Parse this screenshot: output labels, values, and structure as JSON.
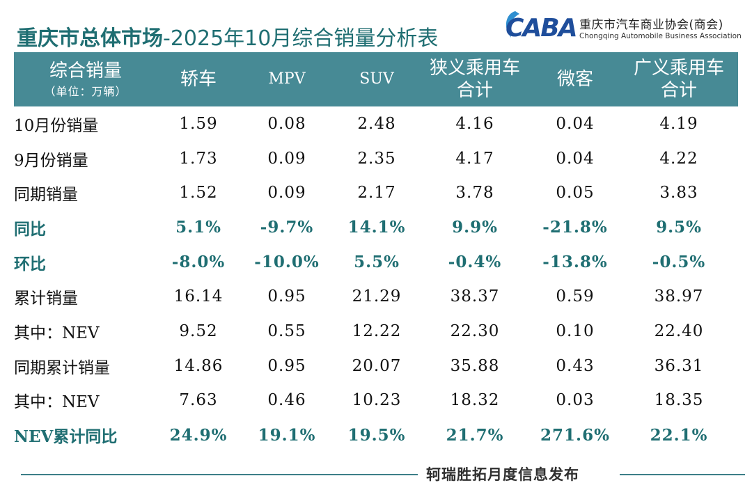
{
  "header": {
    "title_bold": "重庆市总体市场",
    "title_rest": "-2025年10月综合销量分析表"
  },
  "logo": {
    "mark_text": "CABA",
    "cn_name": "重庆市汽车商业协会(商会)",
    "en_name": "Chongqing Automobile Business Association",
    "brand_color": "#1f4e9b"
  },
  "table": {
    "header": {
      "first_main": "综合销量",
      "first_sub": "（单位：万辆）",
      "sedan": "轿车",
      "mpv": "MPV",
      "suv": "SUV",
      "narrow_line1": "狭义乘用车",
      "narrow_line2": "合计",
      "minivan": "微客",
      "broad_line1": "广义乘用车",
      "broad_line2": "合计"
    },
    "rows": [
      {
        "label": "10月份销量",
        "sedan": "1.59",
        "mpv": "0.08",
        "suv": "2.48",
        "narrow": "4.16",
        "minivan": "0.04",
        "broad": "4.19"
      },
      {
        "label": "9月份销量",
        "sedan": "1.73",
        "mpv": "0.09",
        "suv": "2.35",
        "narrow": "4.17",
        "minivan": "0.04",
        "broad": "4.22"
      },
      {
        "label": "同期销量",
        "sedan": "1.52",
        "mpv": "0.09",
        "suv": "2.17",
        "narrow": "3.78",
        "minivan": "0.05",
        "broad": "3.83"
      },
      {
        "label": "同比",
        "sedan": "5.1%",
        "mpv": "-9.7%",
        "suv": "14.1%",
        "narrow": "9.9%",
        "minivan": "-21.8%",
        "broad": "9.5%"
      },
      {
        "label": "环比",
        "sedan": "-8.0%",
        "mpv": "-10.0%",
        "suv": "5.5%",
        "narrow": "-0.4%",
        "minivan": "-13.8%",
        "broad": "-0.5%"
      },
      {
        "label": "累计销量",
        "sedan": "16.14",
        "mpv": "0.95",
        "suv": "21.29",
        "narrow": "38.37",
        "minivan": "0.59",
        "broad": "38.97"
      },
      {
        "label": "其中：NEV",
        "sedan": "9.52",
        "mpv": "0.55",
        "suv": "12.22",
        "narrow": "22.30",
        "minivan": "0.10",
        "broad": "22.40"
      },
      {
        "label": "同期累计销量",
        "sedan": "14.86",
        "mpv": "0.95",
        "suv": "20.07",
        "narrow": "35.88",
        "minivan": "0.43",
        "broad": "36.31"
      },
      {
        "label": "其中：NEV",
        "sedan": "7.63",
        "mpv": "0.46",
        "suv": "10.23",
        "narrow": "18.32",
        "minivan": "0.03",
        "broad": "18.35"
      },
      {
        "label": "NEV累计同比",
        "sedan": "24.9%",
        "mpv": "19.1%",
        "suv": "19.5%",
        "narrow": "21.7%",
        "minivan": "271.6%",
        "broad": "22.1%"
      }
    ]
  },
  "footer": {
    "text": "轲瑞胜拓月度信息发布"
  },
  "colors": {
    "header_bg": "#478a95",
    "accent_text": "#1f6e72",
    "footer_line": "#3c7f88"
  }
}
